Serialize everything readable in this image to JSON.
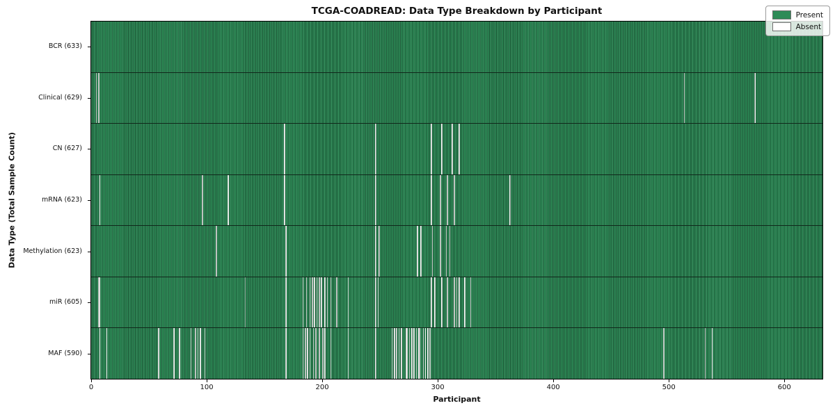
{
  "chart_data": {
    "type": "heatmap",
    "title": "TCGA-COADREAD: Data Type Breakdown by Participant",
    "xlabel": "Participant",
    "ylabel": "Data Type (Total Sample Count)",
    "n_participants": 633,
    "x_ticks": [
      0,
      100,
      200,
      300,
      400,
      500,
      600
    ],
    "xlim": [
      0,
      633
    ],
    "grid": false,
    "legend_position": "upper right",
    "colors": {
      "present": "#2e8b57",
      "absent": "#ffffff"
    },
    "legend": [
      {
        "label": "Present",
        "color": "#2e8b57"
      },
      {
        "label": "Absent",
        "color": "#ffffff"
      }
    ],
    "rows": [
      {
        "name": "BCR",
        "label": "BCR (633)",
        "present_count": 633,
        "absent_participants": []
      },
      {
        "name": "Clinical",
        "label": "Clinical (629)",
        "present_count": 629,
        "absent_participants": [
          4,
          6,
          513,
          574
        ]
      },
      {
        "name": "CN",
        "label": "CN (627)",
        "present_count": 627,
        "absent_participants": [
          167,
          246,
          294,
          303,
          312,
          318
        ]
      },
      {
        "name": "mRNA",
        "label": "mRNA (623)",
        "present_count": 623,
        "absent_participants": [
          7,
          96,
          118,
          167,
          246,
          294,
          302,
          308,
          314,
          362
        ]
      },
      {
        "name": "Methylation",
        "label": "Methylation (623)",
        "present_count": 623,
        "absent_participants": [
          108,
          168,
          246,
          249,
          282,
          285,
          295,
          302,
          307,
          310
        ]
      },
      {
        "name": "miR",
        "label": "miR (605)",
        "present_count": 605,
        "absent_participants": [
          6,
          7,
          133,
          168,
          183,
          186,
          189,
          191,
          193,
          195,
          197,
          199,
          202,
          204,
          207,
          212,
          222,
          246,
          248,
          294,
          297,
          303,
          308,
          314,
          316,
          318,
          323,
          328
        ]
      },
      {
        "name": "MAF",
        "label": "MAF (590)",
        "present_count": 590,
        "absent_participants": [
          7,
          13,
          58,
          71,
          76,
          86,
          90,
          92,
          94,
          98,
          168,
          183,
          185,
          187,
          189,
          192,
          194,
          197,
          200,
          202,
          207,
          222,
          246,
          260,
          262,
          264,
          266,
          268,
          272,
          273,
          275,
          277,
          279,
          281,
          283,
          284,
          287,
          289,
          291,
          293,
          495,
          531,
          537
        ]
      }
    ]
  }
}
